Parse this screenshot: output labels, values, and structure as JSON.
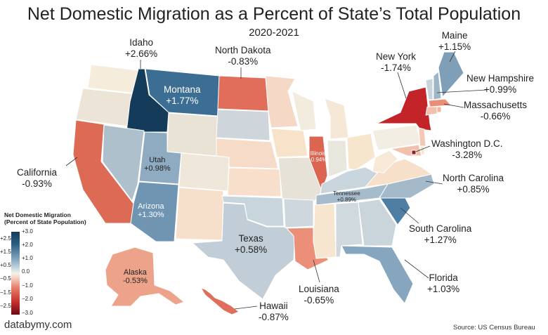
{
  "title": "Net Domestic Migration as a Percent of State’s Total Population",
  "subtitle": "2020-2021",
  "legend": {
    "title_line1": "Net Domestic Migration",
    "title_line2": "(Percent of State Population)",
    "range": [
      -3.0,
      3.0
    ],
    "ticks_right": [
      "+3.0",
      "+2.0",
      "+1.0",
      "0.0",
      "−1.0",
      "−2.0",
      "−3.0"
    ],
    "ticks_left": [
      "+2.5",
      "+1.5",
      "+0.5",
      "−0.5",
      "−1.5",
      "−2.5"
    ],
    "colors": [
      "#6b0a14",
      "#c3302b",
      "#e8806c",
      "#f4d7c8",
      "#f3f1e8",
      "#c8d6df",
      "#7ea2ba",
      "#2c5f84",
      "#123a55"
    ]
  },
  "states": [
    {
      "name": "Idaho",
      "value": "+2.66%",
      "color": "#143c5a"
    },
    {
      "name": "North Dakota",
      "value": "-0.83%",
      "color": "#e06e5a"
    },
    {
      "name": "New York",
      "value": "-1.74%",
      "color": "#c2242a"
    },
    {
      "name": "Maine",
      "value": "+1.15%",
      "color": "#7f9fb8"
    },
    {
      "name": "New Hampshire",
      "value": "+0.99%",
      "color": "#9fb5c8"
    },
    {
      "name": "Massachusetts",
      "value": "-0.66%",
      "color": "#eb8d77"
    },
    {
      "name": "Washington D.C.",
      "value": "-3.28%",
      "color": "#8b1f25"
    },
    {
      "name": "North Carolina",
      "value": "+0.85%",
      "color": "#a4b9c9"
    },
    {
      "name": "South Carolina",
      "value": "+1.27%",
      "color": "#4f7ea4"
    },
    {
      "name": "Florida",
      "value": "+1.03%",
      "color": "#86a6bf"
    },
    {
      "name": "Louisiana",
      "value": "-0.65%",
      "color": "#eb8f78"
    },
    {
      "name": "Hawaii",
      "value": "-0.87%",
      "color": "#df6e5c"
    },
    {
      "name": "Alaska",
      "value": "-0.53%",
      "color": "#eda28a"
    },
    {
      "name": "Texas",
      "value": "+0.58%",
      "color": "#c1ced7"
    },
    {
      "name": "Arizona",
      "value": "+1.30%",
      "color": "#6f95b3"
    },
    {
      "name": "Utah",
      "value": "+0.98%",
      "color": "#8eabc1"
    },
    {
      "name": "California",
      "value": "-0.93%",
      "color": "#dd6a55"
    },
    {
      "name": "Montana",
      "value": "+1.77%",
      "color": "#3c6d93"
    },
    {
      "name": "Illinois",
      "value": "-0.94%",
      "color": "#dc6552"
    },
    {
      "name": "Tennessee",
      "value": "+0.89%",
      "color": "#a6bccc"
    }
  ],
  "branding": "databymy.com",
  "source": "Source: US Census Bureau"
}
